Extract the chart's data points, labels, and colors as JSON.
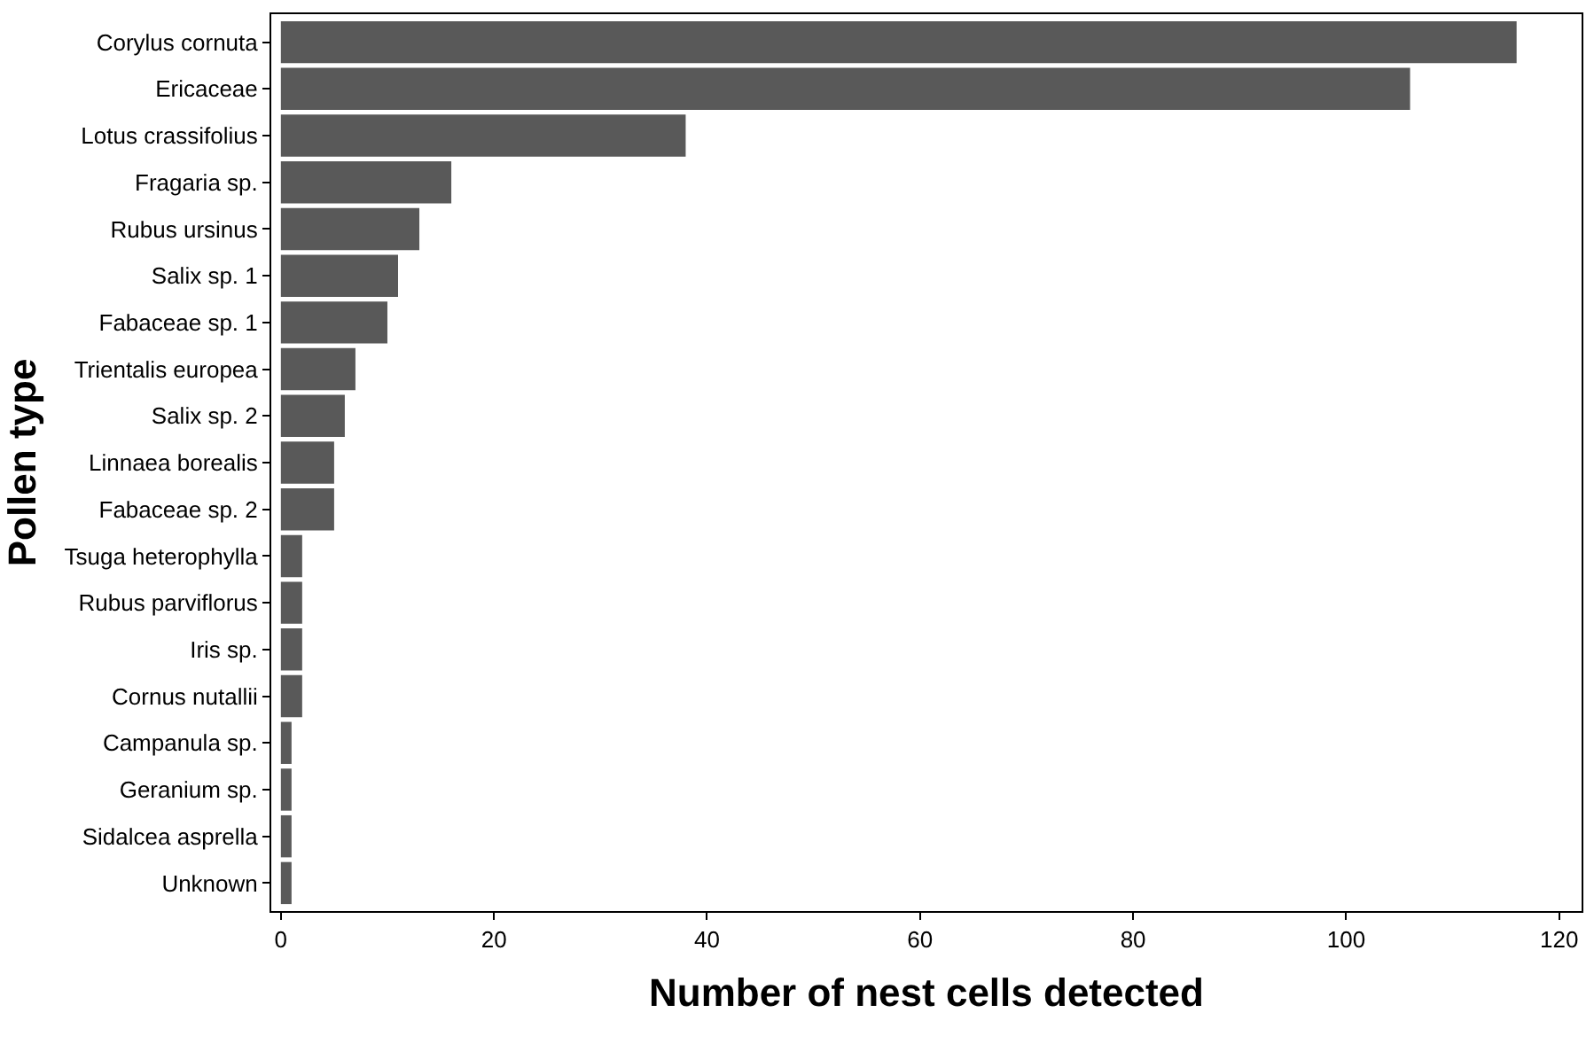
{
  "chart_data": {
    "type": "bar",
    "orientation": "horizontal",
    "xlabel": "Number of nest cells detected",
    "ylabel": "Pollen type",
    "categories": [
      "Corylus cornuta",
      "Ericaceae",
      "Lotus crassifolius",
      "Fragaria sp.",
      "Rubus ursinus",
      "Salix sp. 1",
      "Fabaceae sp. 1",
      "Trientalis europea",
      "Salix sp. 2",
      "Linnaea borealis",
      "Fabaceae sp. 2",
      "Tsuga heterophylla",
      "Rubus parviflorus",
      "Iris sp.",
      "Cornus nutallii",
      "Campanula sp.",
      "Geranium sp.",
      "Sidalcea asprella",
      "Unknown"
    ],
    "values": [
      116,
      106,
      38,
      16,
      13,
      11,
      10,
      7,
      6,
      5,
      5,
      2,
      2,
      2,
      2,
      1,
      1,
      1,
      1
    ],
    "color": "#595959",
    "xlim": [
      -0.9,
      122.1
    ],
    "xticks": [
      0,
      20,
      40,
      60,
      80,
      100,
      120
    ]
  }
}
